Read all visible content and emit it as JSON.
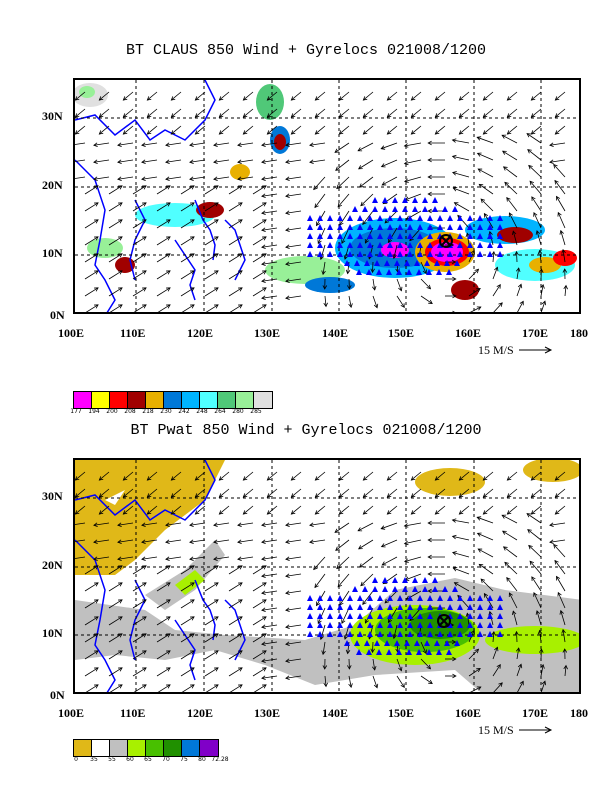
{
  "top_panel": {
    "title": "BT CLAUS 850 Wind + Gyrelocs 021008/1200",
    "y_ticks": [
      "30N",
      "20N",
      "10N",
      "0N"
    ],
    "x_ticks": [
      "100E",
      "110E",
      "120E",
      "130E",
      "140E",
      "150E",
      "160E",
      "170E",
      "180"
    ],
    "vector_scale_label": "15 M/S",
    "legend": {
      "colors": [
        "#ff00ff",
        "#ffff00",
        "#ff0000",
        "#a00000",
        "#e8b000",
        "#0078d8",
        "#00b4ff",
        "#50ffff",
        "#50c878",
        "#98f098",
        "#e0e0e0"
      ],
      "labels": [
        "177",
        "194",
        "200",
        "208",
        "218",
        "230",
        "242",
        "248",
        "264",
        "280",
        "285"
      ]
    }
  },
  "bottom_panel": {
    "title": "BT Pwat 850 Wind + Gyrelocs 021008/1200",
    "y_ticks": [
      "30N",
      "20N",
      "10N",
      "0N"
    ],
    "x_ticks": [
      "100E",
      "110E",
      "120E",
      "130E",
      "140E",
      "150E",
      "160E",
      "170E",
      "180"
    ],
    "vector_scale_label": "15 M/S",
    "legend": {
      "colors": [
        "#e0b818",
        "#ffffff",
        "#c0c0c0",
        "#a8f000",
        "#48c000",
        "#209000",
        "#0078d8",
        "#8000c8"
      ],
      "labels": [
        "0",
        "35",
        "55",
        "60",
        "65",
        "70",
        "75",
        "80",
        "72.28"
      ]
    }
  },
  "colors": {
    "coastline": "#0000ff",
    "triangle_markers": "#0000ff",
    "arrows": "#000000"
  }
}
